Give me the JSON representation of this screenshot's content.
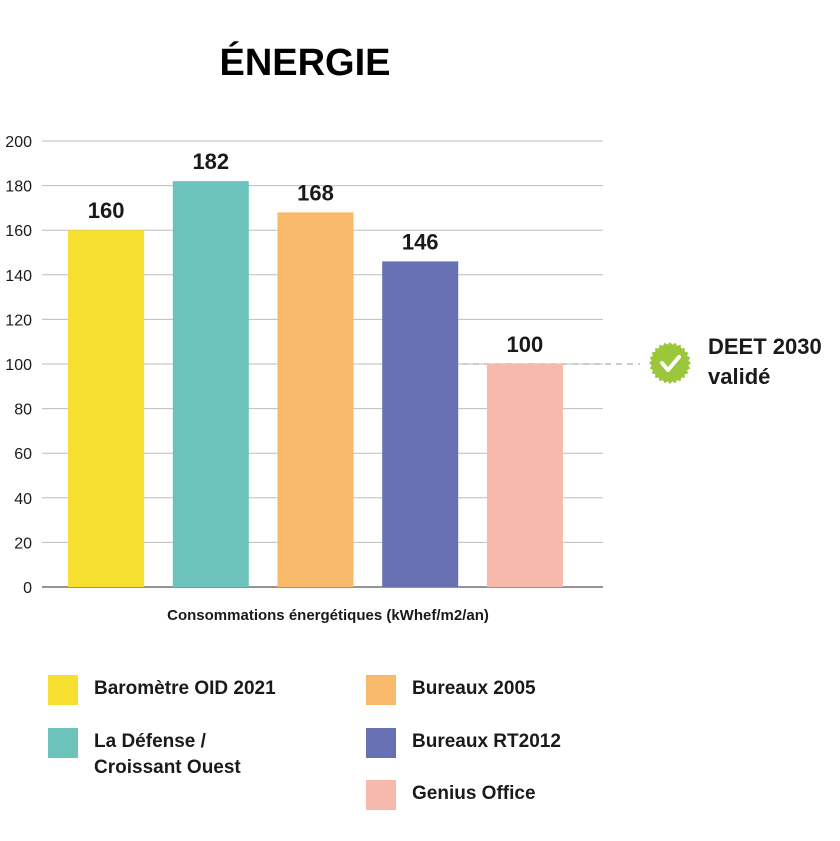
{
  "chart_data": {
    "type": "bar",
    "title": "ÉNERGIE",
    "xlabel": "Consommations énergétiques (kWhef/m2/an)",
    "ylabel": "",
    "ylim": [
      0,
      200
    ],
    "yticks": [
      0,
      20,
      40,
      60,
      80,
      100,
      120,
      140,
      160,
      180,
      200
    ],
    "grid": true,
    "categories": [
      "Baromètre OID 2021",
      "La Défense / Croissant Ouest",
      "Bureaux 2005",
      "Bureaux RT2012",
      "Genius Office"
    ],
    "values": [
      160,
      182,
      168,
      146,
      100
    ],
    "colors": [
      "#f7df2f",
      "#6cc3bb",
      "#f9b96a",
      "#6670b3",
      "#f6b9ab"
    ],
    "reference_line": {
      "value": 100,
      "style": "dashed",
      "color": "#9a9a9a"
    },
    "annotation": {
      "line1": "DEET 2030",
      "line2": "validé",
      "icon": "check-circle-icon",
      "icon_color": "#9bc83a"
    },
    "legend": {
      "placement": "bottom",
      "items": [
        {
          "label": "Baromètre OID 2021",
          "color": "#f7df2f"
        },
        {
          "label": "La Défense / Croissant Ouest",
          "color": "#6cc3bb"
        },
        {
          "label": "Bureaux 2005",
          "color": "#f9b96a"
        },
        {
          "label": "Bureaux RT2012",
          "color": "#6670b3"
        },
        {
          "label": "Genius Office",
          "color": "#f6b9ab"
        }
      ]
    }
  }
}
